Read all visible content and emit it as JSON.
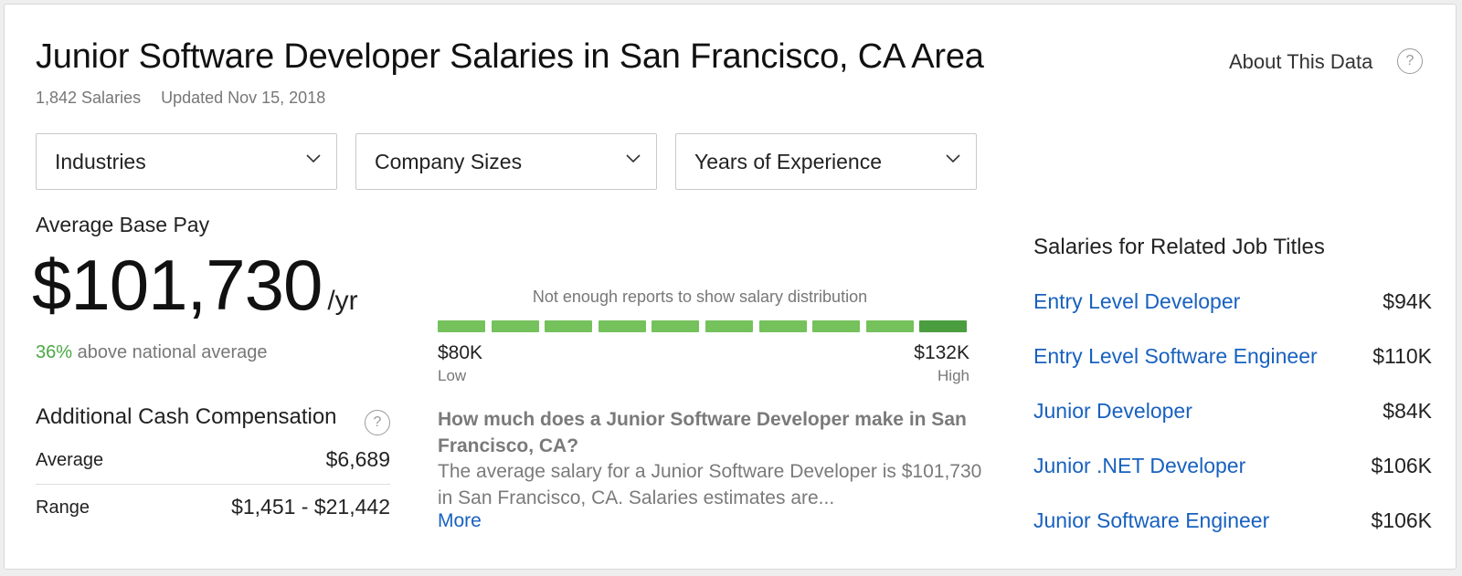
{
  "header": {
    "title": "Junior Software Developer Salaries in San Francisco, CA Area",
    "salary_count": "1,842 Salaries",
    "updated": "Updated Nov 15, 2018",
    "about_label": "About This Data",
    "help_glyph": "?"
  },
  "filters": [
    {
      "label": "Industries"
    },
    {
      "label": "Company Sizes"
    },
    {
      "label": "Years of Experience"
    }
  ],
  "pay": {
    "label": "Average Base Pay",
    "value": "$101,730",
    "unit": "/yr",
    "compare_pct": "36%",
    "compare_text": " above national average"
  },
  "additional": {
    "title": "Additional Cash Compensation",
    "rows": [
      {
        "label": "Average",
        "value": "$6,689"
      },
      {
        "label": "Range",
        "value": "$1,451 - $21,442"
      }
    ]
  },
  "distribution": {
    "note": "Not enough reports to show salary distribution",
    "segment_count": 10,
    "highlighted_segment": 9,
    "low_value": "$80K",
    "low_label": "Low",
    "high_value": "$132K",
    "high_label": "High",
    "colors": {
      "segment": "#75c15c",
      "highlight": "#4a9e3f"
    }
  },
  "faq": {
    "question": "How much does a Junior Software Developer make in San Francisco, CA?",
    "answer": "The average salary for a Junior Software Developer is $101,730 in San Francisco, CA. Salaries estimates are...",
    "more_label": "More"
  },
  "related": {
    "title": "Salaries for Related Job Titles",
    "items": [
      {
        "title": "Entry Level Developer",
        "salary": "$94K"
      },
      {
        "title": "Entry Level Software Engineer",
        "salary": "$110K"
      },
      {
        "title": "Junior Developer",
        "salary": "$84K"
      },
      {
        "title": "Junior .NET Developer",
        "salary": "$106K"
      },
      {
        "title": "Junior Software Engineer",
        "salary": "$106K"
      }
    ]
  },
  "icons": {
    "help": "question-circle-icon",
    "dropdown": "chevron-down-icon"
  },
  "colors": {
    "link": "#1861bf",
    "positive": "#4aa843"
  }
}
